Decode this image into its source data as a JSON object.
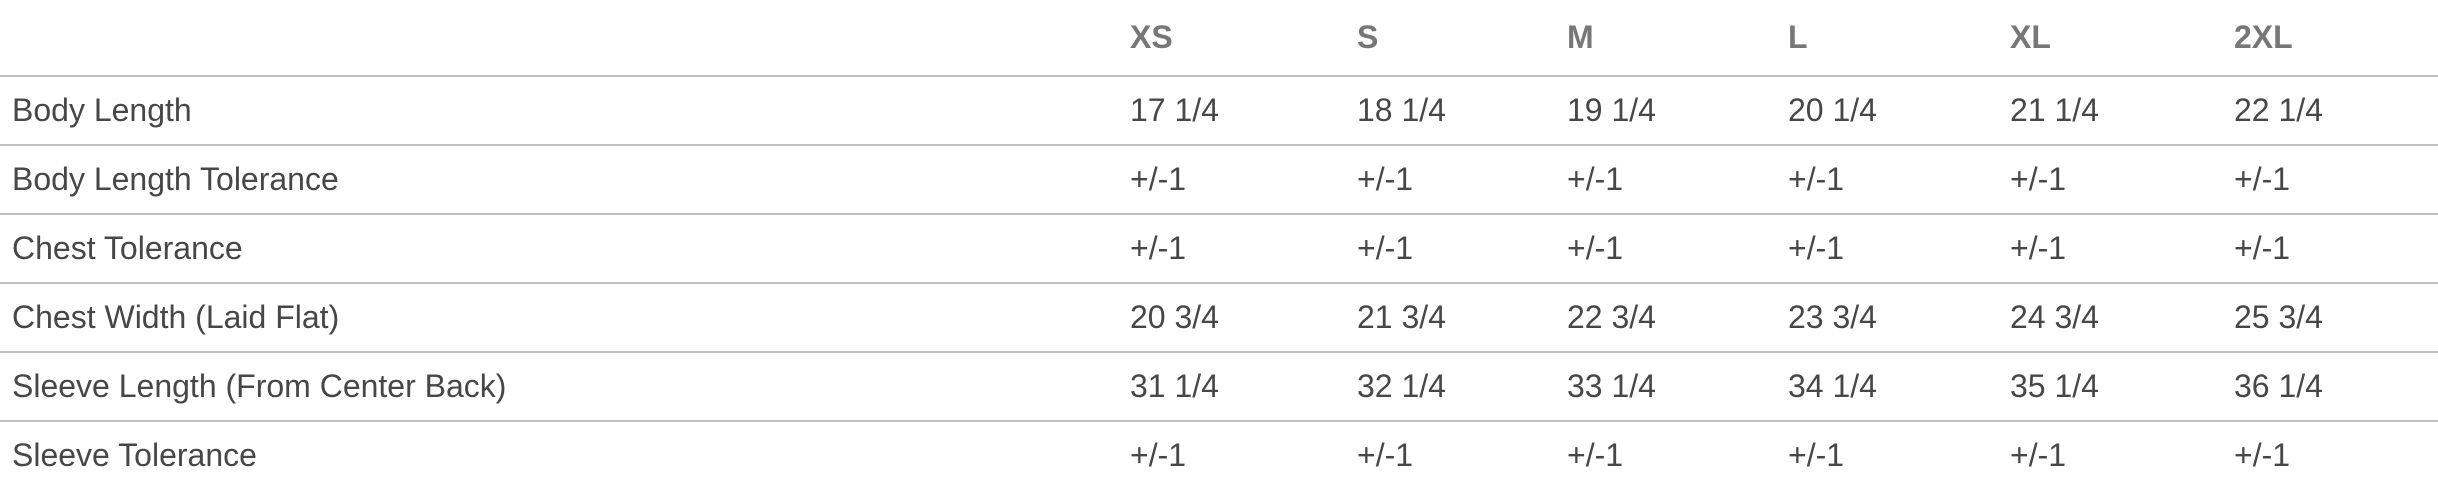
{
  "table": {
    "headers": [
      "",
      "XS",
      "S",
      "M",
      "L",
      "XL",
      "2XL"
    ],
    "rows": [
      {
        "label": "Body Length",
        "values": [
          "17 1/4",
          "18 1/4",
          "19 1/4",
          "20 1/4",
          "21 1/4",
          "22 1/4"
        ]
      },
      {
        "label": "Body Length Tolerance",
        "values": [
          "+/-1",
          "+/-1",
          "+/-1",
          "+/-1",
          "+/-1",
          "+/-1"
        ]
      },
      {
        "label": "Chest Tolerance",
        "values": [
          "+/-1",
          "+/-1",
          "+/-1",
          "+/-1",
          "+/-1",
          "+/-1"
        ]
      },
      {
        "label": "Chest Width (Laid Flat)",
        "values": [
          "20 3/4",
          "21 3/4",
          "22 3/4",
          "23 3/4",
          "24 3/4",
          "25 3/4"
        ]
      },
      {
        "label": "Sleeve Length (From Center Back)",
        "values": [
          "31 1/4",
          "32 1/4",
          "33 1/4",
          "34 1/4",
          "35 1/4",
          "36 1/4"
        ]
      },
      {
        "label": "Sleeve Tolerance",
        "values": [
          "+/-1",
          "+/-1",
          "+/-1",
          "+/-1",
          "+/-1",
          "+/-1"
        ]
      }
    ]
  }
}
